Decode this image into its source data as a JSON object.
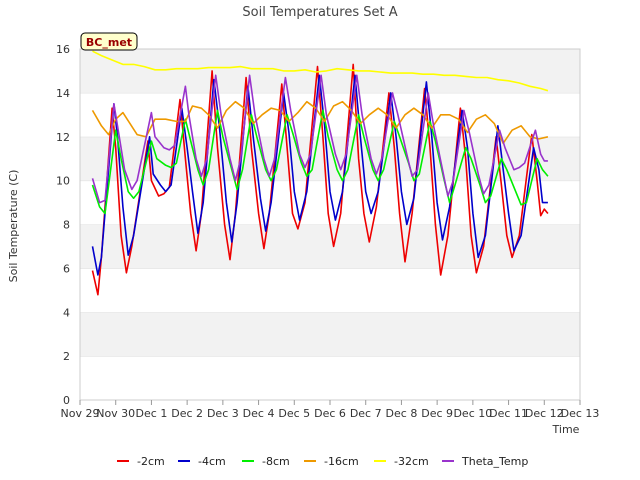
{
  "chart_data": {
    "type": "line",
    "title": "Soil Temperatures Set A",
    "xlabel": "Time",
    "ylabel": "Soil Temperature (C)",
    "badge": "BC_met",
    "ylim": [
      0,
      16
    ],
    "yticks": [
      0,
      2,
      4,
      6,
      8,
      10,
      12,
      14,
      16
    ],
    "xlim": [
      0,
      14
    ],
    "xticks": [
      {
        "x": 0,
        "label": "Nov 29"
      },
      {
        "x": 1,
        "label": "Nov 30"
      },
      {
        "x": 2,
        "label": "Dec 1"
      },
      {
        "x": 3,
        "label": "Dec 2"
      },
      {
        "x": 4,
        "label": "Dec 3"
      },
      {
        "x": 5,
        "label": "Dec 4"
      },
      {
        "x": 6,
        "label": "Dec 5"
      },
      {
        "x": 7,
        "label": "Dec 6"
      },
      {
        "x": 8,
        "label": "Dec 7"
      },
      {
        "x": 9,
        "label": "Dec 8"
      },
      {
        "x": 10,
        "label": "Dec 9"
      },
      {
        "x": 11,
        "label": "Dec 10"
      },
      {
        "x": 12,
        "label": "Dec 11"
      },
      {
        "x": 13,
        "label": "Dec 12"
      },
      {
        "x": 14,
        "label": "Dec 13"
      }
    ],
    "grid": "horizontal bands",
    "legend_position": "bottom",
    "series": [
      {
        "name": "-2cm",
        "color": "#ee0000",
        "x": [
          0.35,
          0.5,
          0.6,
          0.9,
          1.0,
          1.15,
          1.3,
          1.45,
          1.9,
          2.0,
          2.2,
          2.35,
          2.5,
          2.8,
          2.95,
          3.1,
          3.25,
          3.4,
          3.7,
          3.85,
          4.05,
          4.2,
          4.35,
          4.65,
          4.8,
          5.0,
          5.15,
          5.3,
          5.65,
          5.8,
          5.95,
          6.1,
          6.3,
          6.65,
          6.8,
          6.95,
          7.1,
          7.3,
          7.65,
          7.8,
          7.95,
          8.1,
          8.3,
          8.65,
          8.8,
          8.95,
          9.1,
          9.3,
          9.65,
          9.8,
          9.95,
          10.1,
          10.3,
          10.65,
          10.8,
          10.95,
          11.1,
          11.3,
          11.65,
          11.8,
          11.95,
          12.1,
          12.3,
          12.65,
          12.8,
          12.9,
          13.0,
          13.1
        ],
        "y": [
          5.9,
          4.8,
          6.5,
          13.3,
          11.5,
          7.5,
          5.8,
          7.0,
          11.8,
          10.0,
          9.3,
          9.4,
          9.7,
          13.7,
          11.0,
          8.5,
          6.8,
          8.5,
          15.0,
          11.5,
          8.0,
          6.4,
          8.5,
          14.7,
          11.5,
          8.5,
          6.9,
          8.5,
          14.4,
          11.5,
          8.5,
          7.8,
          9.0,
          15.2,
          12.0,
          8.5,
          7.0,
          8.5,
          15.3,
          11.0,
          8.5,
          7.2,
          8.8,
          14.0,
          11.5,
          8.5,
          6.3,
          8.5,
          14.2,
          11.5,
          8.0,
          5.7,
          7.5,
          13.3,
          11.0,
          7.5,
          5.8,
          7.0,
          12.0,
          9.8,
          7.5,
          6.5,
          7.5,
          12.1,
          10.0,
          8.4,
          8.7,
          8.5
        ]
      },
      {
        "name": "-4cm",
        "color": "#0000cc",
        "x": [
          0.35,
          0.5,
          0.6,
          0.95,
          1.05,
          1.2,
          1.35,
          1.5,
          1.95,
          2.05,
          2.25,
          2.4,
          2.55,
          2.85,
          3.0,
          3.15,
          3.3,
          3.45,
          3.75,
          3.9,
          4.1,
          4.25,
          4.4,
          4.7,
          4.85,
          5.05,
          5.2,
          5.35,
          5.7,
          5.85,
          6.0,
          6.15,
          6.35,
          6.7,
          6.85,
          7.0,
          7.15,
          7.35,
          7.7,
          7.85,
          8.0,
          8.15,
          8.35,
          8.7,
          8.85,
          9.0,
          9.15,
          9.35,
          9.7,
          9.85,
          10.0,
          10.15,
          10.35,
          10.7,
          10.85,
          11.0,
          11.15,
          11.35,
          11.7,
          11.85,
          12.0,
          12.15,
          12.35,
          12.7,
          12.85,
          12.95,
          13.05,
          13.1
        ],
        "y": [
          7.0,
          5.7,
          6.5,
          13.5,
          12.0,
          8.8,
          6.6,
          7.5,
          12.0,
          10.3,
          9.8,
          9.5,
          9.8,
          13.3,
          11.5,
          9.5,
          7.6,
          9.0,
          14.6,
          12.5,
          9.0,
          7.2,
          9.0,
          14.3,
          12.0,
          9.2,
          7.7,
          9.0,
          14.0,
          12.2,
          9.5,
          8.2,
          9.5,
          14.8,
          12.5,
          9.5,
          8.2,
          9.5,
          14.8,
          12.0,
          9.5,
          8.5,
          9.5,
          14.0,
          12.0,
          9.5,
          8.0,
          9.2,
          14.5,
          12.0,
          9.0,
          7.3,
          8.8,
          13.2,
          11.5,
          8.5,
          6.5,
          7.5,
          12.5,
          10.5,
          8.5,
          6.8,
          7.5,
          11.5,
          10.5,
          9.0,
          9.0,
          9.0
        ]
      },
      {
        "name": "-8cm",
        "color": "#00ee00",
        "x": [
          0.35,
          0.55,
          0.7,
          1.0,
          1.15,
          1.35,
          1.5,
          1.65,
          2.0,
          2.15,
          2.4,
          2.55,
          2.7,
          2.95,
          3.1,
          3.3,
          3.45,
          3.6,
          3.85,
          4.0,
          4.25,
          4.4,
          4.55,
          4.8,
          4.95,
          5.2,
          5.35,
          5.5,
          5.8,
          5.95,
          6.2,
          6.35,
          6.5,
          6.8,
          6.95,
          7.2,
          7.35,
          7.5,
          7.8,
          7.95,
          8.2,
          8.35,
          8.5,
          8.8,
          8.95,
          9.2,
          9.35,
          9.5,
          9.8,
          9.95,
          10.2,
          10.35,
          10.5,
          10.8,
          10.95,
          11.2,
          11.35,
          11.5,
          11.8,
          11.95,
          12.2,
          12.35,
          12.5,
          12.8,
          12.95,
          13.05,
          13.1
        ],
        "y": [
          9.8,
          8.8,
          8.5,
          12.3,
          11.0,
          9.5,
          9.2,
          9.5,
          11.8,
          11.0,
          10.7,
          10.6,
          10.8,
          12.8,
          11.8,
          10.5,
          9.8,
          10.5,
          13.2,
          12.0,
          10.5,
          9.6,
          10.5,
          13.0,
          12.0,
          10.5,
          10.0,
          10.5,
          13.0,
          12.2,
          10.8,
          10.2,
          10.5,
          13.2,
          12.0,
          10.5,
          10.0,
          10.5,
          13.0,
          12.0,
          10.5,
          10.0,
          10.5,
          12.7,
          12.0,
          10.8,
          10.0,
          10.3,
          12.7,
          11.8,
          10.0,
          9.0,
          9.8,
          11.5,
          11.0,
          9.8,
          9.0,
          9.3,
          11.0,
          10.5,
          9.5,
          8.9,
          9.0,
          11.0,
          10.5,
          10.3,
          10.2
        ]
      },
      {
        "name": "-16cm",
        "color": "#ee9900",
        "x": [
          0.35,
          0.6,
          0.8,
          1.0,
          1.2,
          1.4,
          1.6,
          1.85,
          2.1,
          2.4,
          2.7,
          2.95,
          3.15,
          3.4,
          3.6,
          3.85,
          4.1,
          4.35,
          4.6,
          4.85,
          5.1,
          5.35,
          5.6,
          5.85,
          6.1,
          6.35,
          6.6,
          6.85,
          7.1,
          7.35,
          7.6,
          7.85,
          8.1,
          8.35,
          8.6,
          8.85,
          9.1,
          9.35,
          9.6,
          9.85,
          10.1,
          10.35,
          10.6,
          10.85,
          11.1,
          11.35,
          11.6,
          11.85,
          12.1,
          12.35,
          12.6,
          12.85,
          13.1
        ],
        "y": [
          13.2,
          12.5,
          12.1,
          12.8,
          13.1,
          12.6,
          12.1,
          12.0,
          12.8,
          12.8,
          12.7,
          12.7,
          13.4,
          13.3,
          13.0,
          12.4,
          13.2,
          13.6,
          13.3,
          12.6,
          13.0,
          13.3,
          13.2,
          12.7,
          13.1,
          13.6,
          13.3,
          12.7,
          13.4,
          13.6,
          13.2,
          12.6,
          13.0,
          13.3,
          13.0,
          12.4,
          13.0,
          13.3,
          13.0,
          12.4,
          13.0,
          13.0,
          12.8,
          12.2,
          12.8,
          13.0,
          12.6,
          11.7,
          12.3,
          12.5,
          12.0,
          11.9,
          12.0
        ]
      },
      {
        "name": "-32cm",
        "color": "#ffff00",
        "x": [
          0.35,
          0.6,
          0.9,
          1.2,
          1.5,
          1.8,
          2.1,
          2.4,
          2.7,
          3.0,
          3.3,
          3.6,
          3.9,
          4.2,
          4.5,
          4.8,
          5.1,
          5.4,
          5.7,
          6.0,
          6.3,
          6.6,
          6.9,
          7.2,
          7.5,
          7.8,
          8.1,
          8.4,
          8.7,
          9.0,
          9.3,
          9.6,
          9.9,
          10.2,
          10.5,
          10.8,
          11.1,
          11.4,
          11.7,
          12.0,
          12.3,
          12.6,
          12.9,
          13.1
        ],
        "y": [
          15.9,
          15.7,
          15.5,
          15.3,
          15.3,
          15.2,
          15.05,
          15.05,
          15.1,
          15.1,
          15.1,
          15.15,
          15.15,
          15.15,
          15.2,
          15.1,
          15.1,
          15.1,
          15.0,
          15.0,
          15.05,
          14.95,
          15.0,
          15.1,
          15.05,
          15.0,
          15.0,
          14.95,
          14.9,
          14.9,
          14.9,
          14.85,
          14.85,
          14.8,
          14.8,
          14.75,
          14.7,
          14.7,
          14.6,
          14.55,
          14.45,
          14.3,
          14.2,
          14.1
        ]
      },
      {
        "name": "Theta_Temp",
        "color": "#9933cc",
        "x": [
          0.35,
          0.55,
          0.7,
          0.95,
          1.05,
          1.25,
          1.45,
          1.6,
          2.0,
          2.1,
          2.35,
          2.5,
          2.65,
          2.95,
          3.05,
          3.25,
          3.4,
          3.55,
          3.8,
          3.95,
          4.2,
          4.35,
          4.5,
          4.75,
          4.9,
          5.15,
          5.3,
          5.45,
          5.75,
          5.9,
          6.15,
          6.3,
          6.45,
          6.75,
          6.9,
          7.15,
          7.3,
          7.45,
          7.75,
          7.9,
          8.15,
          8.3,
          8.45,
          8.75,
          8.9,
          9.15,
          9.3,
          9.45,
          9.75,
          9.9,
          10.15,
          10.3,
          10.45,
          10.75,
          10.9,
          11.15,
          11.3,
          11.45,
          11.75,
          11.9,
          12.15,
          12.3,
          12.45,
          12.75,
          12.9,
          13.0,
          13.1
        ],
        "y": [
          10.1,
          9.0,
          9.1,
          13.5,
          12.5,
          10.5,
          9.6,
          10.0,
          13.1,
          12.0,
          11.5,
          11.4,
          11.6,
          14.3,
          13.0,
          11.0,
          10.2,
          11.0,
          14.8,
          13.0,
          11.0,
          10.0,
          11.0,
          14.8,
          13.0,
          11.0,
          10.2,
          11.0,
          14.7,
          13.2,
          11.2,
          10.6,
          11.2,
          14.8,
          13.0,
          11.2,
          10.5,
          11.2,
          14.8,
          13.0,
          11.0,
          10.3,
          11.0,
          14.0,
          13.0,
          11.2,
          10.2,
          10.5,
          14.0,
          12.5,
          10.5,
          9.3,
          10.0,
          13.2,
          12.2,
          10.3,
          9.4,
          9.8,
          12.3,
          11.5,
          10.5,
          10.6,
          10.8,
          12.3,
          11.2,
          10.9,
          10.9
        ]
      }
    ]
  }
}
